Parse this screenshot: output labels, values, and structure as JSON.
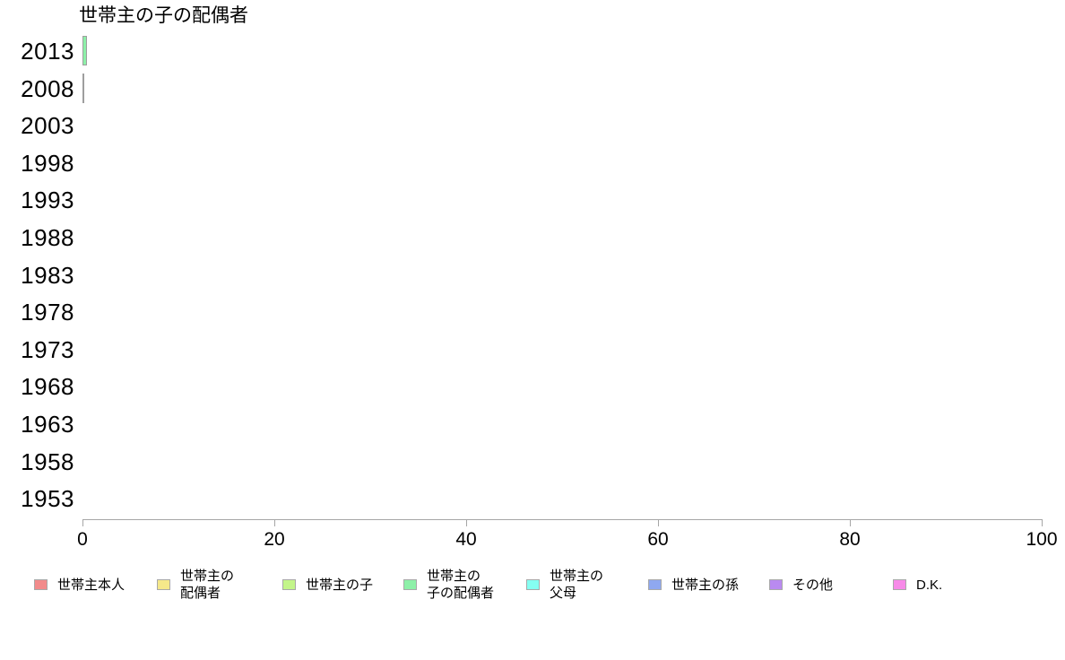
{
  "chart_data": {
    "type": "bar",
    "orientation": "horizontal",
    "title": "世帯主の子の配偶者",
    "categories": [
      "2013",
      "2008",
      "2003",
      "1998",
      "1993",
      "1988",
      "1983",
      "1978",
      "1973",
      "1968",
      "1963",
      "1958",
      "1953"
    ],
    "values": [
      0.5,
      0.15,
      0,
      0,
      0,
      0,
      0,
      0,
      0,
      0,
      0,
      0,
      0
    ],
    "xlabel": "",
    "ylabel": "",
    "xlim": [
      0,
      100
    ],
    "x_ticks": [
      "0",
      "20",
      "40",
      "60",
      "80",
      "100"
    ],
    "grid": "off",
    "legend_position": "bottom",
    "bar_color": "#8df0a8",
    "bar_border_color": "#9e9e9e",
    "axis_color": "#a6a6a6"
  },
  "legend": {
    "items": [
      {
        "label": "世帯主本人",
        "color": "#f28b8b"
      },
      {
        "label": "世帯主の\n配偶者",
        "color": "#f5e88a"
      },
      {
        "label": "世帯主の子",
        "color": "#c3f58a"
      },
      {
        "label": "世帯主の\n子の配偶者",
        "color": "#8df0a8"
      },
      {
        "label": "世帯主の\n父母",
        "color": "#85fff2"
      },
      {
        "label": "世帯主の孫",
        "color": "#8fa8f0"
      },
      {
        "label": "その他",
        "color": "#b98af0"
      },
      {
        "label": "D.K.",
        "color": "#f78ae8"
      }
    ]
  }
}
